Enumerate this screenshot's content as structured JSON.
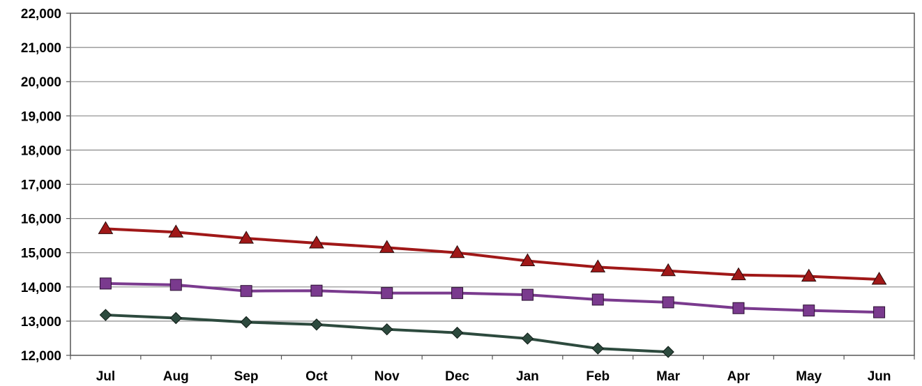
{
  "chart_data": {
    "type": "line",
    "title": "",
    "xlabel": "",
    "ylabel": "",
    "categories": [
      "Jul",
      "Aug",
      "Sep",
      "Oct",
      "Nov",
      "Dec",
      "Jan",
      "Feb",
      "Mar",
      "Apr",
      "May",
      "Jun"
    ],
    "ylim": [
      12000,
      22000
    ],
    "yticks": [
      12000,
      13000,
      14000,
      15000,
      16000,
      17000,
      18000,
      19000,
      20000,
      21000,
      22000
    ],
    "ytick_labels": [
      "12,000",
      "13,000",
      "14,000",
      "15,000",
      "16,000",
      "17,000",
      "18,000",
      "19,000",
      "20,000",
      "21,000",
      "22,000"
    ],
    "grid": "horizontal",
    "legend": "none",
    "series": [
      {
        "marker": "triangle",
        "color": "#a01818",
        "values": [
          15700,
          15600,
          15420,
          15280,
          15150,
          15000,
          14760,
          14580,
          14470,
          14350,
          14310,
          14220
        ]
      },
      {
        "marker": "square",
        "color": "#7a3a8e",
        "values": [
          14100,
          14060,
          13880,
          13890,
          13820,
          13820,
          13770,
          13630,
          13550,
          13380,
          13310,
          13260
        ]
      },
      {
        "marker": "diamond",
        "color": "#2d4a3e",
        "values": [
          13180,
          13090,
          12970,
          12900,
          12760,
          12660,
          12490,
          12200,
          12100,
          null,
          null,
          null
        ]
      }
    ]
  }
}
